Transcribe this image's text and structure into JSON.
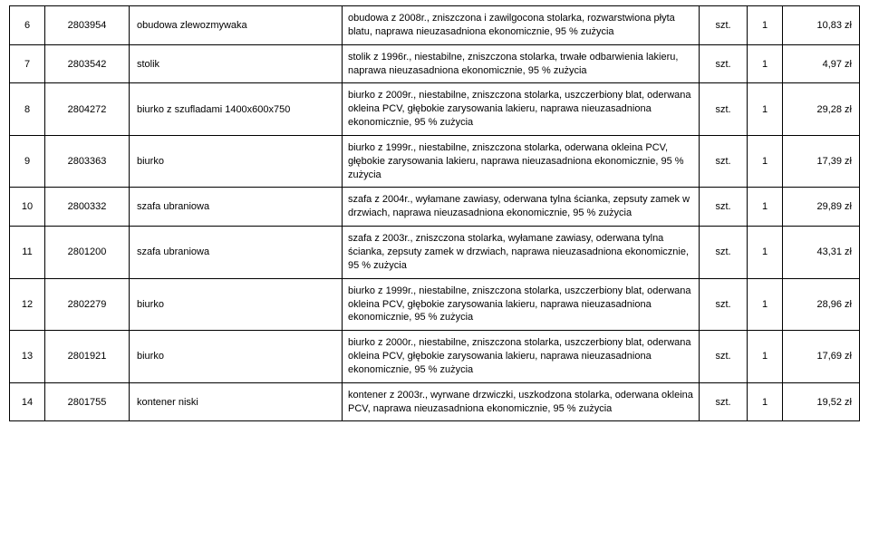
{
  "rows": [
    {
      "idx": "6",
      "id": "2803954",
      "name": "obudowa zlewozmywaka",
      "desc": "obudowa z 2008r., zniszczona i zawilgocona stolarka, rozwarstwiona płyta blatu, naprawa nieuzasadniona ekonomicznie, 95 % zużycia",
      "unit": "szt.",
      "qty": "1",
      "price": "10,83 zł"
    },
    {
      "idx": "7",
      "id": "2803542",
      "name": "stolik",
      "desc": "stolik z 1996r., niestabilne, zniszczona stolarka, trwałe odbarwienia lakieru, naprawa nieuzasadniona ekonomicznie, 95 % zużycia",
      "unit": "szt.",
      "qty": "1",
      "price": "4,97 zł"
    },
    {
      "idx": "8",
      "id": "2804272",
      "name": "biurko z szufladami 1400x600x750",
      "desc": "biurko z 2009r., niestabilne, zniszczona stolarka, uszczerbiony blat, oderwana okleina PCV, głębokie zarysowania lakieru, naprawa nieuzasadniona ekonomicznie, 95 % zużycia",
      "unit": "szt.",
      "qty": "1",
      "price": "29,28 zł"
    },
    {
      "idx": "9",
      "id": "2803363",
      "name": "biurko",
      "desc": "biurko z 1999r., niestabilne, zniszczona stolarka, oderwana okleina PCV, głębokie zarysowania lakieru, naprawa nieuzasadniona ekonomicznie, 95 % zużycia",
      "unit": "szt.",
      "qty": "1",
      "price": "17,39 zł"
    },
    {
      "idx": "10",
      "id": "2800332",
      "name": "szafa ubraniowa",
      "desc": "szafa z 2004r., wyłamane zawiasy, oderwana tylna ścianka, zepsuty zamek w drzwiach, naprawa nieuzasadniona ekonomicznie, 95 % zużycia",
      "unit": "szt.",
      "qty": "1",
      "price": "29,89 zł"
    },
    {
      "idx": "11",
      "id": "2801200",
      "name": "szafa ubraniowa",
      "desc": "szafa z 2003r., zniszczona stolarka, wyłamane zawiasy, oderwana tylna ścianka, zepsuty zamek w drzwiach, naprawa nieuzasadniona ekonomicznie, 95 % zużycia",
      "unit": "szt.",
      "qty": "1",
      "price": "43,31 zł"
    },
    {
      "idx": "12",
      "id": "2802279",
      "name": "biurko",
      "desc": "biurko z 1999r., niestabilne, zniszczona stolarka, uszczerbiony blat, oderwana okleina PCV, głębokie zarysowania lakieru, naprawa nieuzasadniona ekonomicznie, 95 % zużycia",
      "unit": "szt.",
      "qty": "1",
      "price": "28,96 zł"
    },
    {
      "idx": "13",
      "id": "2801921",
      "name": "biurko",
      "desc": "biurko z 2000r., niestabilne, zniszczona stolarka, uszczerbiony blat, oderwana okleina PCV, głębokie zarysowania lakieru, naprawa nieuzasadniona ekonomicznie, 95 % zużycia",
      "unit": "szt.",
      "qty": "1",
      "price": "17,69 zł"
    },
    {
      "idx": "14",
      "id": "2801755",
      "name": "kontener niski",
      "desc": "kontener z 2003r., wyrwane drzwiczki, uszkodzona stolarka, oderwana okleina PCV, naprawa nieuzasadniona ekonomicznie, 95 % zużycia",
      "unit": "szt.",
      "qty": "1",
      "price": "19,52 zł"
    }
  ]
}
